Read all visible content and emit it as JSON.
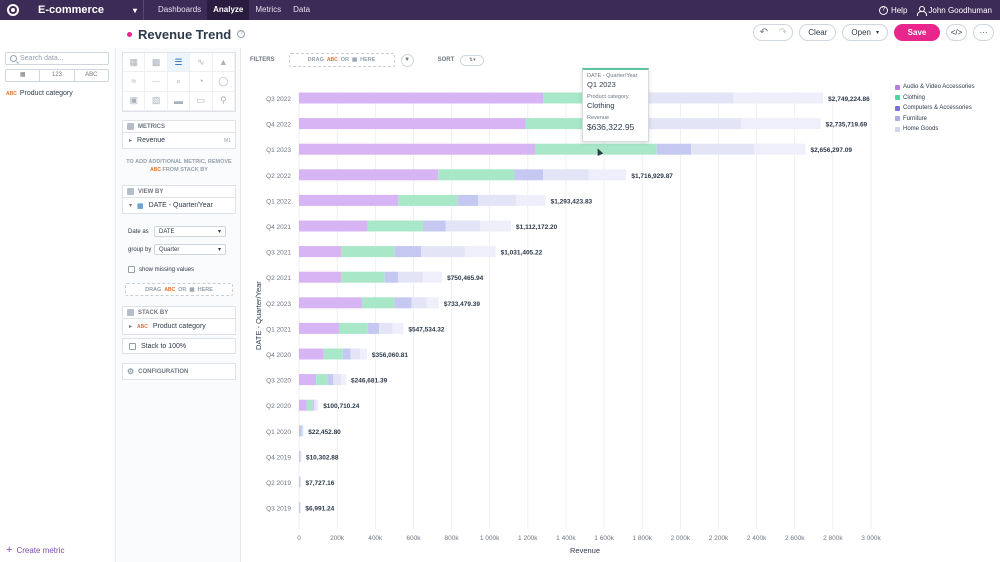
{
  "nav": {
    "workspace": "E-commerce",
    "links": [
      "Dashboards",
      "Analyze",
      "Metrics",
      "Data"
    ],
    "help": "Help",
    "user": "John Goodhuman"
  },
  "header": {
    "title": "Revenue Trend",
    "clear_label": "Clear",
    "open_label": "Open",
    "save_label": "Save"
  },
  "catalog": {
    "search_placeholder": "Search data...",
    "type_filters": [
      "123",
      "ABC"
    ],
    "items": [
      {
        "type": "ABC",
        "label": "Product category"
      }
    ],
    "create_metric": "Create metric"
  },
  "config": {
    "metrics_title": "METRICS",
    "metric_item": "Revenue",
    "metric_number": "M1",
    "metrics_hint": [
      "TO ADD ADDITIONAL METRIC, REMOVE",
      "FROM STACK BY"
    ],
    "view_by_title": "VIEW BY",
    "view_by_item": "DATE - Quarter/Year",
    "date_as_label": "Date as",
    "date_as_value": "DATE",
    "group_by_label": "group by",
    "group_by_value": "Quarter",
    "show_missing": "show missing values",
    "drag_drag": "DRAG",
    "drag_or": "OR",
    "drag_here": "HERE",
    "stack_by_title": "STACK BY",
    "stack_by_item": "Product category",
    "stack_100": "Stack to 100%",
    "configuration_title": "CONFIGURATION"
  },
  "toolbar": {
    "filters_label": "FILTERS",
    "sort_label": "SORT",
    "drag": "DRAG",
    "or": "OR",
    "here": "HERE"
  },
  "tooltip": {
    "date_key": "DATE - Quarter/Year",
    "date_value": "Q1 2023",
    "category_key": "Product category",
    "category_value": "Clothing",
    "revenue_key": "Revenue",
    "revenue_value": "$636,322.95"
  },
  "colors": {
    "accent": "#e8268c",
    "nav_bg": "#3d2b57",
    "series": [
      "#d7b4f3",
      "#a8e8c9",
      "#c5c8f0",
      "#e3e5f7",
      "#eeeffb"
    ]
  },
  "chart_data": {
    "type": "bar",
    "orientation": "horizontal",
    "stacked": true,
    "xlabel": "Revenue",
    "ylabel": "DATE - Quarter/Year",
    "xlim": [
      0,
      3000000
    ],
    "x_ticks": [
      "0",
      "200k",
      "400k",
      "600k",
      "800k",
      "1 000k",
      "1 200k",
      "1 400k",
      "1 600k",
      "1 800k",
      "2 000k",
      "2 200k",
      "2 400k",
      "2 600k",
      "2 800k",
      "3 000k"
    ],
    "grid": true,
    "legend_position": "top-right",
    "categories": [
      "Q3 2022",
      "Q4 2022",
      "Q1 2023",
      "Q2 2022",
      "Q1 2022",
      "Q4 2021",
      "Q3 2021",
      "Q2 2021",
      "Q2 2023",
      "Q1 2021",
      "Q4 2020",
      "Q3 2020",
      "Q2 2020",
      "Q1 2020",
      "Q4 2019",
      "Q2 2019",
      "Q3 2019"
    ],
    "totals": [
      "$2,749,224.86",
      "$2,735,719.69",
      "$2,656,297.09",
      "$1,716,929.87",
      "$1,293,423.83",
      "$1,112,172.20",
      "$1,031,405.22",
      "$750,465.94",
      "$733,479.39",
      "$547,534.32",
      "$356,060.81",
      "$246,681.39",
      "$100,710.24",
      "$22,452.80",
      "$10,302.88",
      "$7,727.16",
      "$6,991.24"
    ],
    "series": [
      {
        "name": "Audio & Video Accessories",
        "values": [
          1280000,
          1190000,
          1240000,
          730000,
          520000,
          360000,
          220000,
          220000,
          330000,
          210000,
          130000,
          90000,
          40000,
          8000,
          4000,
          3000,
          3000
        ]
      },
      {
        "name": "Clothing",
        "values": [
          320000,
          350000,
          636322.95,
          400000,
          310000,
          290000,
          280000,
          230000,
          170000,
          150000,
          100000,
          60000,
          30000,
          6000,
          3000,
          2000,
          2000
        ]
      },
      {
        "name": "Computers & Accessories",
        "values": [
          200000,
          250000,
          180000,
          150000,
          110000,
          120000,
          140000,
          70000,
          90000,
          60000,
          40000,
          30000,
          10000,
          4000,
          2000,
          1500,
          1000
        ]
      },
      {
        "name": "Furniture",
        "values": [
          480000,
          530000,
          330000,
          240000,
          200000,
          180000,
          230000,
          130000,
          80000,
          70000,
          50000,
          40000,
          12000,
          3000,
          1000,
          1000,
          700
        ]
      },
      {
        "name": "Home Goods",
        "values": [
          469224.86,
          415719.69,
          269974.14,
          196929.87,
          153423.83,
          162172.2,
          161405.22,
          100465.94,
          63479.39,
          57534.32,
          36060.81,
          26681.39,
          8710.24,
          1452.8,
          302.88,
          227.16,
          291.24
        ]
      }
    ]
  }
}
